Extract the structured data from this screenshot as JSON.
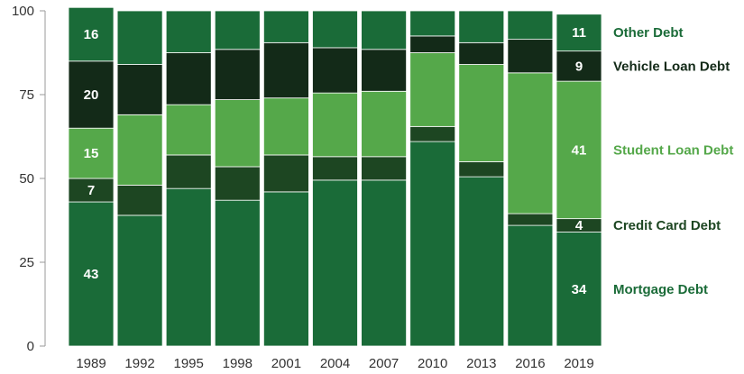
{
  "chart_data": {
    "type": "bar",
    "stacked": true,
    "categories": [
      "1989",
      "1992",
      "1995",
      "1998",
      "2001",
      "2004",
      "2007",
      "2010",
      "2013",
      "2016",
      "2019"
    ],
    "series": [
      {
        "name": "Mortgage Debt",
        "color": "#1a6b38",
        "values": [
          43,
          39,
          47,
          43.5,
          46,
          49.5,
          49.5,
          61,
          50.5,
          36,
          34
        ]
      },
      {
        "name": "Credit Card Debt",
        "color": "#1d4622",
        "values": [
          7,
          9,
          10,
          10,
          11,
          7,
          7,
          4.5,
          4.5,
          3.5,
          4
        ]
      },
      {
        "name": "Student Loan Debt",
        "color": "#55a84a",
        "values": [
          15,
          21,
          15,
          20,
          17,
          19,
          19.5,
          22,
          29,
          42,
          41
        ]
      },
      {
        "name": "Vehicle Loan Debt",
        "color": "#132a18",
        "values": [
          20,
          15,
          15.5,
          15,
          16.5,
          13.5,
          12.5,
          5,
          6.5,
          10,
          9
        ]
      },
      {
        "name": "Other Debt",
        "color": "#1a6b38",
        "values": [
          16,
          16,
          12.5,
          11.5,
          9.5,
          11,
          11.5,
          7.5,
          9.5,
          8.5,
          11
        ]
      }
    ],
    "data_labels": {
      "1989": [
        "43",
        "7",
        "15",
        "20",
        "16"
      ],
      "2019": [
        "34",
        "4",
        "41",
        "9",
        "11"
      ]
    },
    "legend_position": "right",
    "legend_colors": [
      "#1a6b38",
      "#1d4622",
      "#55a84a",
      "#132a18",
      "#1a6b38"
    ],
    "ylim": [
      0,
      100
    ],
    "yticks": [
      "0",
      "25",
      "50",
      "75",
      "100"
    ],
    "grid": false,
    "title": "",
    "xlabel": "",
    "ylabel": ""
  }
}
